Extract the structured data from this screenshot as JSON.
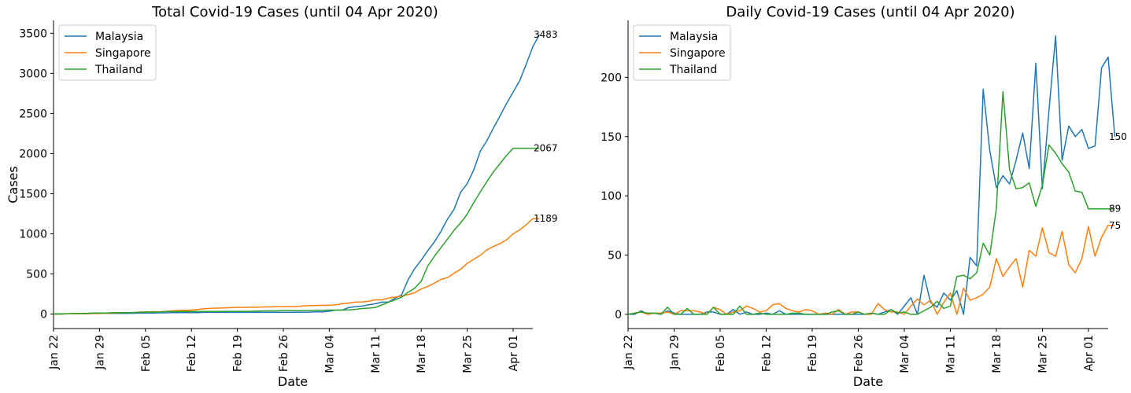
{
  "chart_data": [
    {
      "type": "line",
      "title": "Total Covid-19 Cases (until 04 Apr 2020)",
      "xlabel": "Date",
      "ylabel": "Cases",
      "x_start": "2020-01-22",
      "x_end": "2020-04-04",
      "xticks": [
        "Jan 22",
        "Jan 29",
        "Feb 05",
        "Feb 12",
        "Feb 19",
        "Feb 26",
        "Mar 04",
        "Mar 11",
        "Mar 18",
        "Mar 25",
        "Apr 01"
      ],
      "yticks": [
        0,
        500,
        1000,
        1500,
        2000,
        2500,
        3000,
        3500
      ],
      "ylim": [
        -180,
        3660
      ],
      "legend_position": "top-left",
      "grid": false,
      "end_labels": [
        "3483",
        "2067",
        "1189"
      ],
      "series": [
        {
          "name": "Malaysia",
          "color": "#1f77b4",
          "values": [
            0,
            0,
            3,
            3,
            4,
            4,
            7,
            8,
            8,
            8,
            8,
            8,
            10,
            12,
            12,
            12,
            16,
            16,
            18,
            18,
            18,
            19,
            19,
            22,
            22,
            22,
            22,
            22,
            22,
            22,
            22,
            22,
            22,
            22,
            22,
            22,
            22,
            23,
            23,
            25,
            29,
            29,
            36,
            50,
            50,
            83,
            93,
            99,
            117,
            129,
            149,
            149,
            197,
            238,
            428,
            566,
            673,
            790,
            900,
            1030,
            1183,
            1306,
            1518,
            1624,
            1796,
            2031,
            2161,
            2320,
            2470,
            2626,
            2766,
            2908,
            3116,
            3333,
            3483
          ]
        },
        {
          "name": "Singapore",
          "color": "#ff7f0e",
          "values": [
            0,
            1,
            3,
            3,
            4,
            5,
            7,
            7,
            10,
            13,
            16,
            18,
            18,
            24,
            28,
            28,
            30,
            33,
            40,
            45,
            47,
            50,
            58,
            67,
            72,
            75,
            77,
            81,
            84,
            84,
            85,
            85,
            89,
            89,
            91,
            93,
            93,
            93,
            102,
            106,
            108,
            110,
            110,
            117,
            130,
            138,
            150,
            150,
            160,
            178,
            178,
            200,
            212,
            226,
            243,
            266,
            313,
            345,
            385,
            432,
            455,
            509,
            558,
            631,
            683,
            732,
            802,
            844,
            879,
            926,
            1000,
            1049,
            1114,
            1189,
            1189
          ]
        },
        {
          "name": "Thailand",
          "color": "#2ca02c",
          "values": [
            2,
            3,
            5,
            7,
            8,
            8,
            14,
            14,
            14,
            19,
            19,
            19,
            19,
            25,
            25,
            25,
            25,
            32,
            32,
            32,
            33,
            33,
            33,
            33,
            33,
            34,
            35,
            35,
            35,
            35,
            35,
            37,
            40,
            40,
            40,
            42,
            42,
            43,
            43,
            43,
            47,
            48,
            50,
            50,
            50,
            53,
            59,
            70,
            75,
            82,
            114,
            147,
            177,
            212,
            272,
            322,
            411,
            599,
            721,
            827,
            934,
            1045,
            1136,
            1245,
            1388,
            1524,
            1651,
            1771,
            1875,
            1978,
            2067,
            2067,
            2067,
            2067,
            2067
          ]
        }
      ]
    },
    {
      "type": "line",
      "title": "Daily Covid-19 Cases (until 04 Apr 2020)",
      "xlabel": "Date",
      "ylabel": "",
      "x_start": "2020-01-22",
      "x_end": "2020-04-04",
      "xticks": [
        "Jan 22",
        "Jan 29",
        "Feb 05",
        "Feb 12",
        "Feb 19",
        "Feb 26",
        "Mar 04",
        "Mar 11",
        "Mar 18",
        "Mar 25",
        "Apr 01"
      ],
      "yticks": [
        0,
        50,
        100,
        150,
        200
      ],
      "ylim": [
        -12,
        248
      ],
      "legend_position": "top-left",
      "grid": false,
      "end_labels": [
        "150",
        "89",
        "75"
      ],
      "series": [
        {
          "name": "Malaysia",
          "color": "#1f77b4",
          "values": [
            0,
            0,
            3,
            0,
            1,
            0,
            3,
            1,
            0,
            0,
            0,
            0,
            2,
            2,
            0,
            0,
            4,
            0,
            2,
            0,
            0,
            1,
            0,
            3,
            0,
            0,
            0,
            0,
            0,
            0,
            0,
            0,
            0,
            0,
            0,
            0,
            0,
            1,
            0,
            2,
            4,
            0,
            7,
            14,
            0,
            33,
            10,
            6,
            18,
            12,
            20,
            0,
            48,
            41,
            190,
            138,
            107,
            117,
            110,
            130,
            153,
            123,
            212,
            106,
            172,
            235,
            130,
            159,
            150,
            156,
            140,
            142,
            208,
            217,
            150
          ]
        },
        {
          "name": "Singapore",
          "color": "#ff7f0e",
          "values": [
            0,
            1,
            2,
            0,
            1,
            1,
            2,
            0,
            3,
            3,
            3,
            2,
            0,
            6,
            4,
            0,
            2,
            3,
            7,
            5,
            2,
            3,
            8,
            9,
            5,
            3,
            2,
            4,
            3,
            0,
            1,
            0,
            4,
            0,
            2,
            2,
            0,
            0,
            9,
            4,
            2,
            2,
            0,
            7,
            13,
            8,
            12,
            0,
            10,
            18,
            0,
            22,
            12,
            14,
            17,
            23,
            47,
            32,
            40,
            47,
            23,
            54,
            49,
            73,
            52,
            49,
            70,
            42,
            35,
            47,
            74,
            49,
            65,
            75,
            75
          ]
        },
        {
          "name": "Thailand",
          "color": "#2ca02c",
          "values": [
            0,
            1,
            2,
            1,
            1,
            0,
            6,
            0,
            0,
            5,
            0,
            0,
            0,
            6,
            0,
            0,
            0,
            7,
            0,
            0,
            1,
            0,
            0,
            0,
            0,
            1,
            1,
            0,
            0,
            0,
            0,
            2,
            3,
            0,
            0,
            2,
            0,
            1,
            0,
            0,
            4,
            1,
            2,
            0,
            0,
            3,
            6,
            11,
            5,
            7,
            32,
            33,
            30,
            35,
            60,
            50,
            89,
            188,
            122,
            106,
            107,
            111,
            91,
            109,
            143,
            136,
            127,
            120,
            104,
            103,
            89,
            89,
            89,
            89,
            89
          ]
        }
      ]
    }
  ],
  "legend": {
    "items": [
      "Malaysia",
      "Singapore",
      "Thailand"
    ]
  }
}
